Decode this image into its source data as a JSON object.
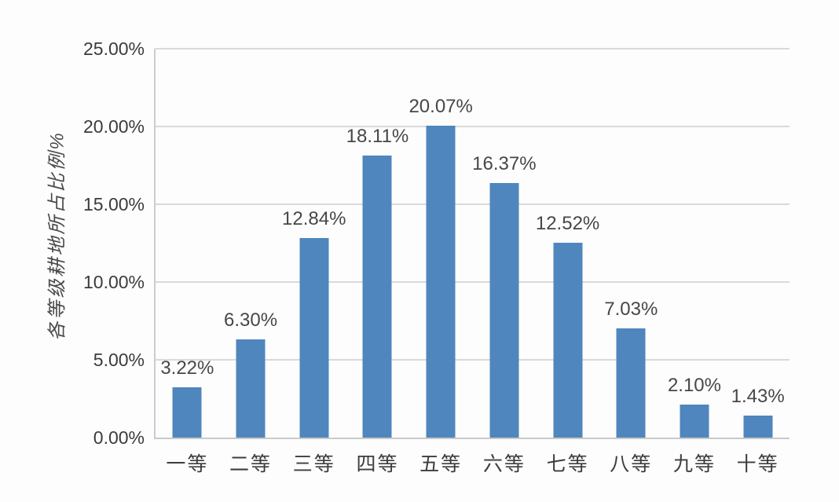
{
  "chart_data": {
    "type": "bar",
    "title": "",
    "categories": [
      "一等",
      "二等",
      "三等",
      "四等",
      "五等",
      "六等",
      "七等",
      "八等",
      "九等",
      "十等"
    ],
    "values": [
      3.22,
      6.3,
      12.84,
      18.11,
      20.07,
      16.37,
      12.52,
      7.03,
      2.1,
      1.43
    ],
    "data_labels": [
      "3.22%",
      "6.30%",
      "12.84%",
      "18.11%",
      "20.07%",
      "16.37%",
      "12.52%",
      "7.03%",
      "2.10%",
      "1.43%"
    ],
    "xlabel": "",
    "ylabel": "各等级耕地所占比例%",
    "ylim": [
      0,
      25
    ],
    "ytick_step": 5,
    "yticks": [
      {
        "value": 0,
        "label": "0.00%"
      },
      {
        "value": 5,
        "label": "5.00%"
      },
      {
        "value": 10,
        "label": "10.00%"
      },
      {
        "value": 15,
        "label": "15.00%"
      },
      {
        "value": 20,
        "label": "20.00%"
      },
      {
        "value": 25,
        "label": "25.00%"
      }
    ],
    "grid": true,
    "legend_position": "none",
    "colors": {
      "bar": "#4f86bd",
      "gridline": "#d9d9d9",
      "axis_line": "#c9c9c9",
      "tick_text": "#3b3b3b",
      "value_text": "#474747",
      "axis_title_text": "#4a4a4a",
      "background": "#fdfdfd"
    }
  }
}
